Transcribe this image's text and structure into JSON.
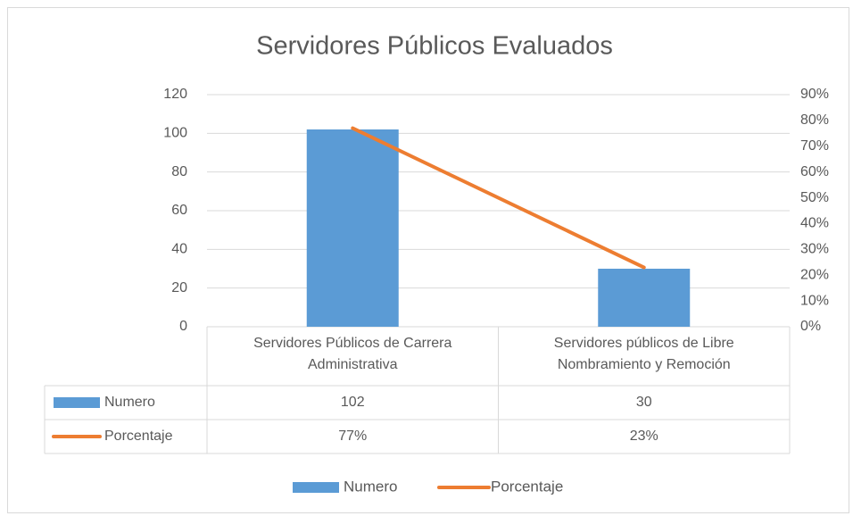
{
  "chart_data": {
    "type": "bar",
    "title": "Servidores Públicos Evaluados",
    "categories": [
      "Servidores Públicos de Carrera Administrativa",
      "Servidores públicos de Libre Nombramiento y Remoción"
    ],
    "series": [
      {
        "name": "Numero",
        "color": "#5b9bd5",
        "values": [
          102,
          30
        ]
      },
      {
        "name": "Porcentaje",
        "color": "#ed7d31",
        "type": "line",
        "axis": "y2",
        "values": [
          77,
          23
        ],
        "value_labels": [
          "77%",
          "23%"
        ]
      }
    ],
    "ylim": [
      0,
      120
    ],
    "yticks": [
      0,
      20,
      40,
      60,
      80,
      100,
      120
    ],
    "y2lim": [
      0,
      90
    ],
    "y2ticks": [
      {
        "value": 0,
        "label": "0%"
      },
      {
        "value": 10,
        "label": "10%"
      },
      {
        "value": 20,
        "label": "20%"
      },
      {
        "value": 30,
        "label": "30%"
      },
      {
        "value": 40,
        "label": "40%"
      },
      {
        "value": 50,
        "label": "50%"
      },
      {
        "value": 60,
        "label": "60%"
      },
      {
        "value": 70,
        "label": "70%"
      },
      {
        "value": 80,
        "label": "80%"
      },
      {
        "value": 90,
        "label": "90%"
      }
    ],
    "grid": true,
    "legend": "bottom"
  }
}
